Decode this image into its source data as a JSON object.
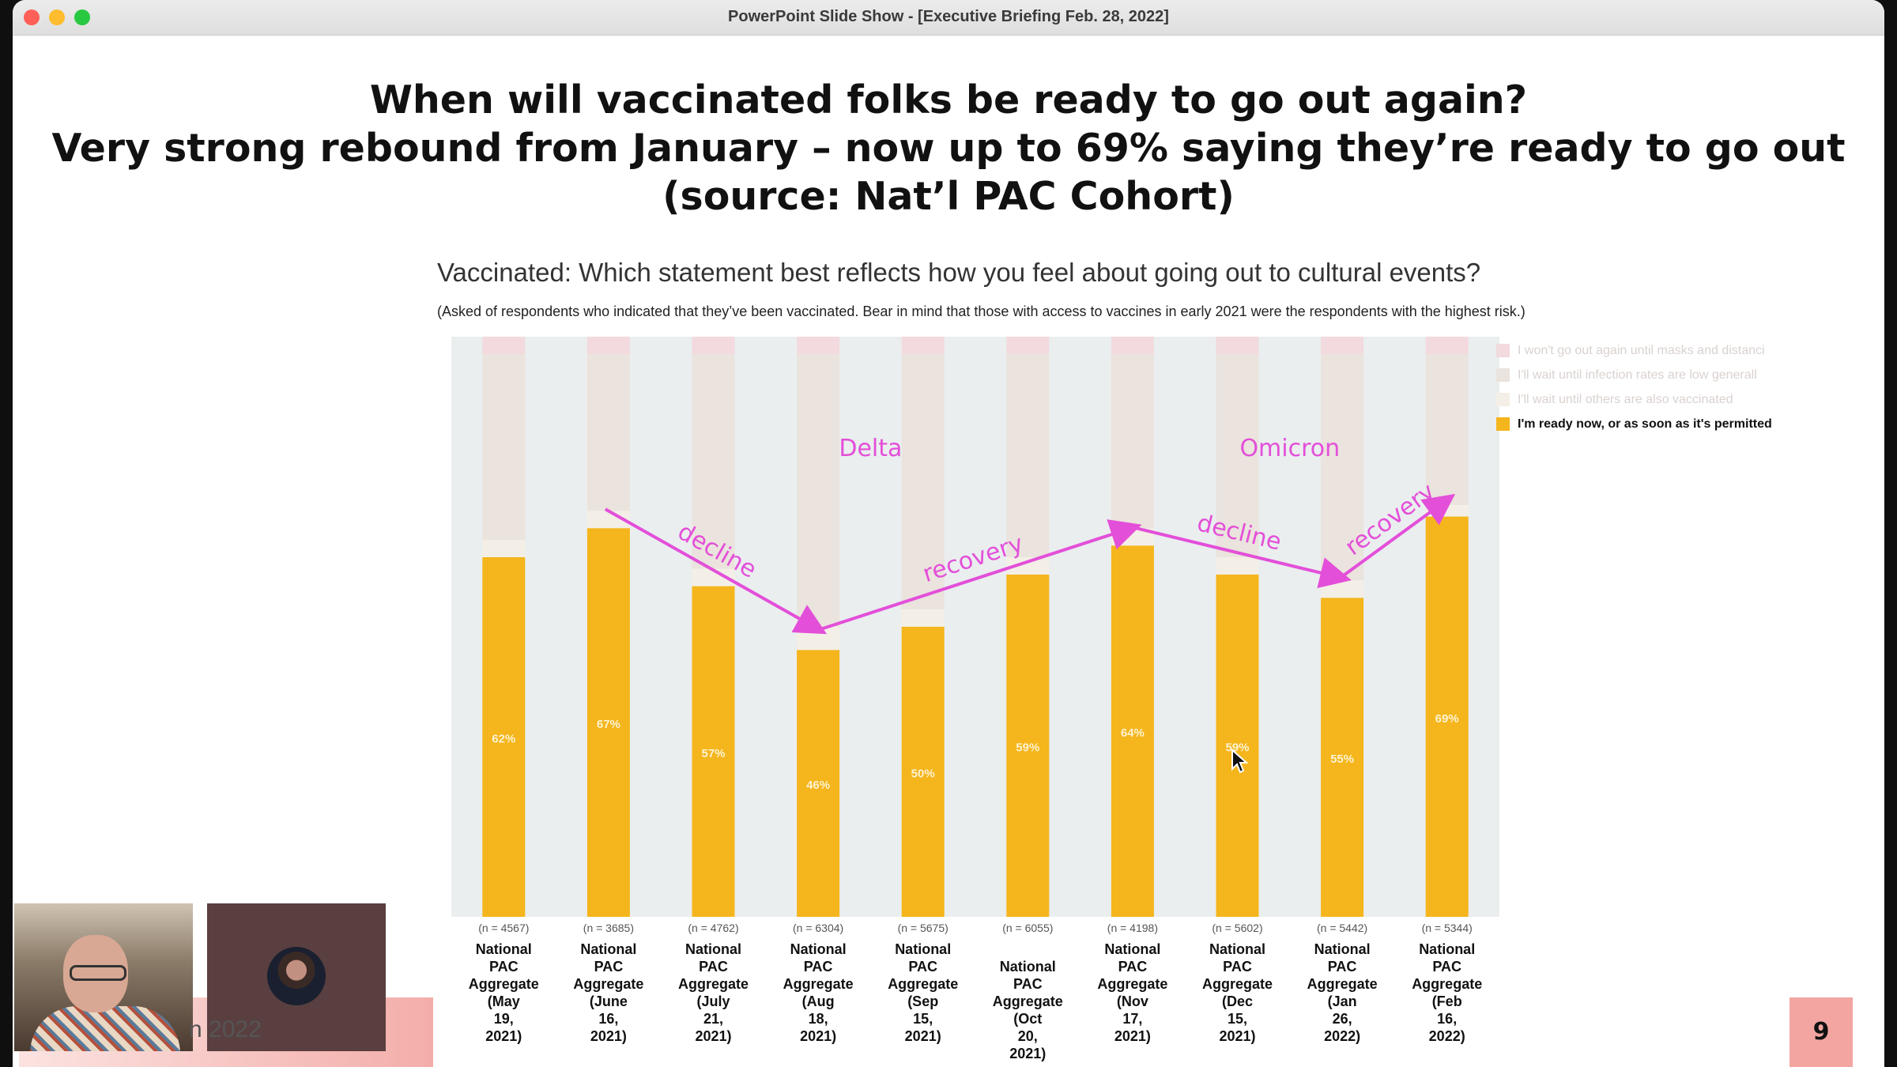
{
  "window": {
    "title": "PowerPoint Slide Show - [Executive Briefing Feb. 28, 2022]"
  },
  "slide": {
    "headline": [
      "When will vaccinated folks be ready to go out again?",
      "Very strong rebound from January – now up to 69% saying they’re ready to go out",
      "(source: Nat’l PAC Cohort)"
    ],
    "question": "Vaccinated: Which statement best reflects how you feel about going out to cultural events?",
    "note": "(Asked of respondents who indicated that they’ve been vaccinated. Bear in mind that those with access to vaccines in early 2021 were the respondents with the highest risk.)",
    "slide_number": "9",
    "video_caption": "n 2022"
  },
  "chart_data": {
    "type": "bar",
    "stacked": true,
    "ylim": [
      0,
      100
    ],
    "categories": [
      [
        "National",
        "PAC",
        "Aggregate",
        "(May",
        "19,",
        "2021)"
      ],
      [
        "National",
        "PAC",
        "Aggregate",
        "(June",
        "16,",
        "2021)"
      ],
      [
        "National",
        "PAC",
        "Aggregate",
        "(July",
        "21,",
        "2021)"
      ],
      [
        "National",
        "PAC",
        "Aggregate",
        "(Aug",
        "18,",
        "2021)"
      ],
      [
        "National",
        "PAC",
        "Aggregate",
        "(Sep",
        "15,",
        "2021)"
      ],
      [
        "National",
        "PAC",
        "Aggregate",
        "(Oct",
        "20,",
        "2021)"
      ],
      [
        "National",
        "PAC",
        "Aggregate",
        "(Nov",
        "17,",
        "2021)"
      ],
      [
        "National",
        "PAC",
        "Aggregate",
        "(Dec",
        "15,",
        "2021)"
      ],
      [
        "National",
        "PAC",
        "Aggregate",
        "(Jan",
        "26,",
        "2022)"
      ],
      [
        "National",
        "PAC",
        "Aggregate",
        "(Feb",
        "16,",
        "2022)"
      ]
    ],
    "sample_sizes": [
      "(n = 4567)",
      "(n = 3685)",
      "(n = 4762)",
      "(n = 6304)",
      "(n = 5675)",
      "(n = 6055)",
      "(n = 4198)",
      "(n = 5602)",
      "(n = 5442)",
      "(n = 5344)"
    ],
    "series": [
      {
        "name": "I'm ready now, or as soon as it's permitted",
        "color": "#f5b51c",
        "values": [
          62,
          67,
          57,
          46,
          50,
          59,
          64,
          59,
          55,
          69
        ],
        "labels": [
          "62%",
          "67%",
          "57%",
          "46%",
          "50%",
          "59%",
          "64%",
          "59%",
          "55%",
          "69%"
        ]
      },
      {
        "name": "I'll wait until others are also vaccinated",
        "color": "#f3efe6",
        "values": [
          3,
          3,
          3,
          4,
          3,
          3,
          3,
          3,
          3,
          2
        ]
      },
      {
        "name": "I'll wait until infection rates are low generall",
        "color": "#ebe3dd",
        "values": [
          32,
          27,
          37,
          47,
          44,
          35,
          30,
          35,
          39,
          26
        ]
      },
      {
        "name": "I won't go out again until masks and distanci",
        "color": "#f2dade",
        "values": [
          3,
          3,
          3,
          3,
          3,
          3,
          3,
          3,
          3,
          3
        ]
      }
    ],
    "legend_order": [
      3,
      2,
      1,
      0
    ],
    "legend_position": "right",
    "annotations": {
      "color": "#e34fd9",
      "phase_labels": [
        {
          "text": "Delta",
          "between": [
            3,
            4
          ]
        },
        {
          "text": "Omicron",
          "between": [
            7,
            8
          ]
        }
      ],
      "trends": [
        {
          "text": "decline",
          "from": [
            1,
            67
          ],
          "to": [
            3,
            46
          ]
        },
        {
          "text": "recovery",
          "from": [
            3,
            46
          ],
          "to": [
            6,
            64
          ]
        },
        {
          "text": "decline",
          "from": [
            6,
            64
          ],
          "to": [
            8,
            55
          ]
        },
        {
          "text": "recovery",
          "from": [
            8,
            55
          ],
          "to": [
            9,
            69
          ]
        }
      ]
    }
  }
}
